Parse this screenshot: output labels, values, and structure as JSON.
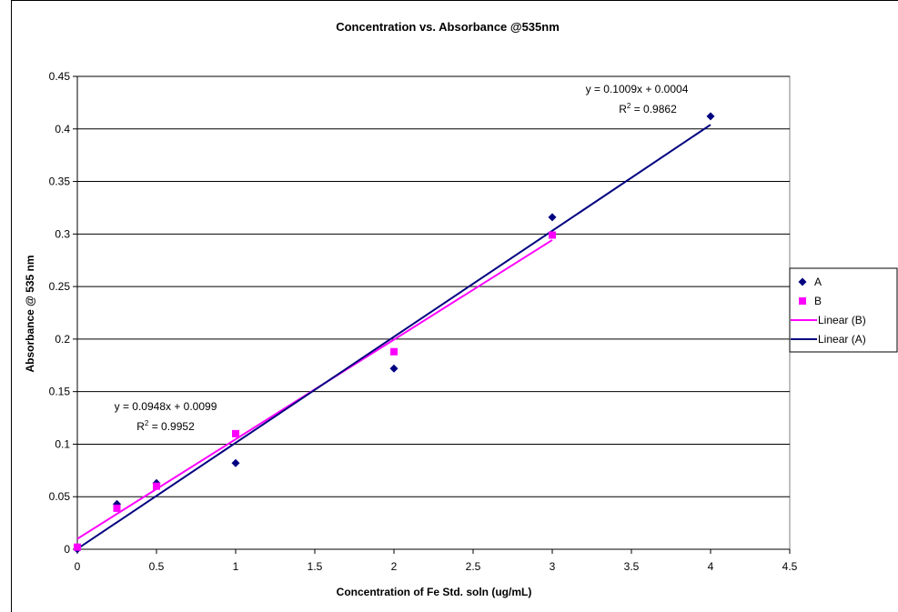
{
  "chart_data": {
    "type": "scatter",
    "title": "Concentration vs.  Absorbance @535nm",
    "x_label": "Concentration of Fe Std. soln (ug/mL)",
    "y_label": "Absorbance @ 535 nm",
    "xlim": [
      0,
      4.5
    ],
    "xticks": [
      0,
      0.5,
      1,
      1.5,
      2,
      2.5,
      3,
      3.5,
      4,
      4.5
    ],
    "ylim": [
      0,
      0.45
    ],
    "yticks": [
      0,
      0.05,
      0.1,
      0.15,
      0.2,
      0.25,
      0.3,
      0.35,
      0.4,
      0.45
    ],
    "grid": true,
    "legend": "right",
    "series": [
      {
        "name": "A",
        "color": "#000080",
        "marker": "diamond",
        "x": [
          0,
          0.25,
          0.5,
          1,
          2,
          3,
          4
        ],
        "values": [
          0,
          0.043,
          0.063,
          0.082,
          0.172,
          0.316,
          0.412
        ]
      },
      {
        "name": "B",
        "color": "#ff00ff",
        "marker": "square",
        "x": [
          0,
          0.25,
          0.5,
          1,
          2,
          3
        ],
        "values": [
          0.002,
          0.039,
          0.06,
          0.11,
          0.188,
          0.299
        ]
      }
    ],
    "trendlines": [
      {
        "name": "Linear (B)",
        "color": "#ff00ff",
        "slope": 0.0948,
        "intercept": 0.0099,
        "x": [
          0,
          3
        ],
        "equation": "y = 0.0948x + 0.0099",
        "r2": {
          "base": "R",
          "sup": "2",
          "rest": " = 0.9952"
        }
      },
      {
        "name": "Linear (A)",
        "color": "#000080",
        "slope": 0.1009,
        "intercept": 0.0004,
        "x": [
          0,
          4
        ],
        "equation": "y = 0.1009x + 0.0004",
        "r2": {
          "base": "R",
          "sup": "2",
          "rest": " = 0.9862"
        }
      }
    ]
  }
}
